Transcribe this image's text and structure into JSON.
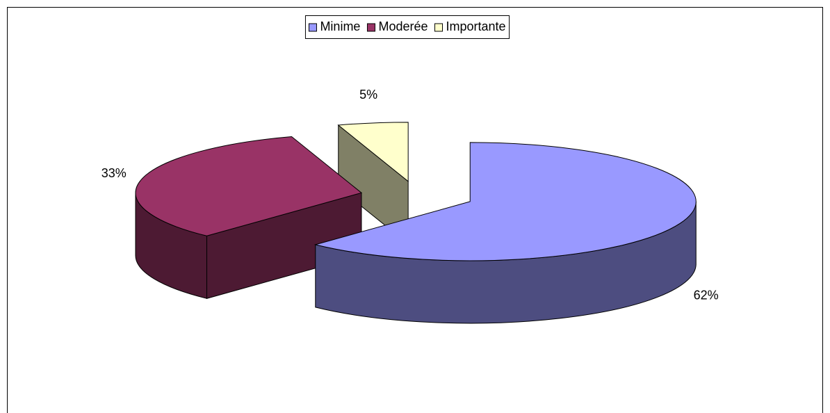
{
  "chart_data": {
    "type": "pie3d",
    "categories": [
      "Minime",
      "Moderée",
      "Importante"
    ],
    "values": [
      62,
      33,
      5
    ],
    "value_labels": [
      "62%",
      "33%",
      "5%"
    ],
    "colors": [
      "#9999ff",
      "#993366",
      "#ffffcc"
    ],
    "legend": "top"
  }
}
